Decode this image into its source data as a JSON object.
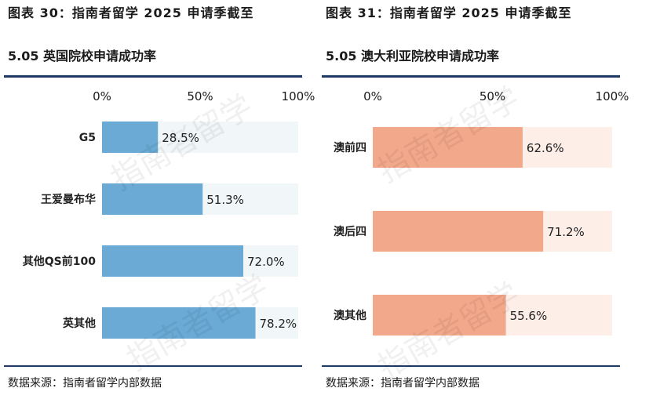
{
  "watermark": "指南者留学",
  "panels": [
    {
      "title": "图表 30：指南者留学 2025 申请季截至",
      "subtitle": "5.05 英国院校申请成功率",
      "source": "数据来源：指南者留学内部数据"
    },
    {
      "title": "图表 31：指南者留学 2025 申请季截至",
      "subtitle": "5.05 澳大利亚院校申请成功率",
      "source": "数据来源：指南者留学内部数据"
    }
  ],
  "chart_data": [
    {
      "type": "bar",
      "orientation": "horizontal",
      "categories": [
        "G5",
        "王爱曼布华",
        "其他QS前100",
        "英其他"
      ],
      "values": [
        28.5,
        51.3,
        72.0,
        78.2
      ],
      "value_labels": [
        "28.5%",
        "51.3%",
        "72.0%",
        "78.2%"
      ],
      "xlim": [
        0,
        100
      ],
      "x_ticks": [
        "0%",
        "50%",
        "100%"
      ],
      "bar_color": "#6aaad4",
      "track_color": "#f1f6f8"
    },
    {
      "type": "bar",
      "orientation": "horizontal",
      "categories": [
        "澳前四",
        "澳后四",
        "澳其他"
      ],
      "values": [
        62.6,
        71.2,
        55.6
      ],
      "value_labels": [
        "62.6%",
        "71.2%",
        "55.6%"
      ],
      "xlim": [
        0,
        100
      ],
      "x_ticks": [
        "0%",
        "50%",
        "100%"
      ],
      "bar_color": "#f2a88b",
      "track_color": "#fdeee8"
    }
  ]
}
